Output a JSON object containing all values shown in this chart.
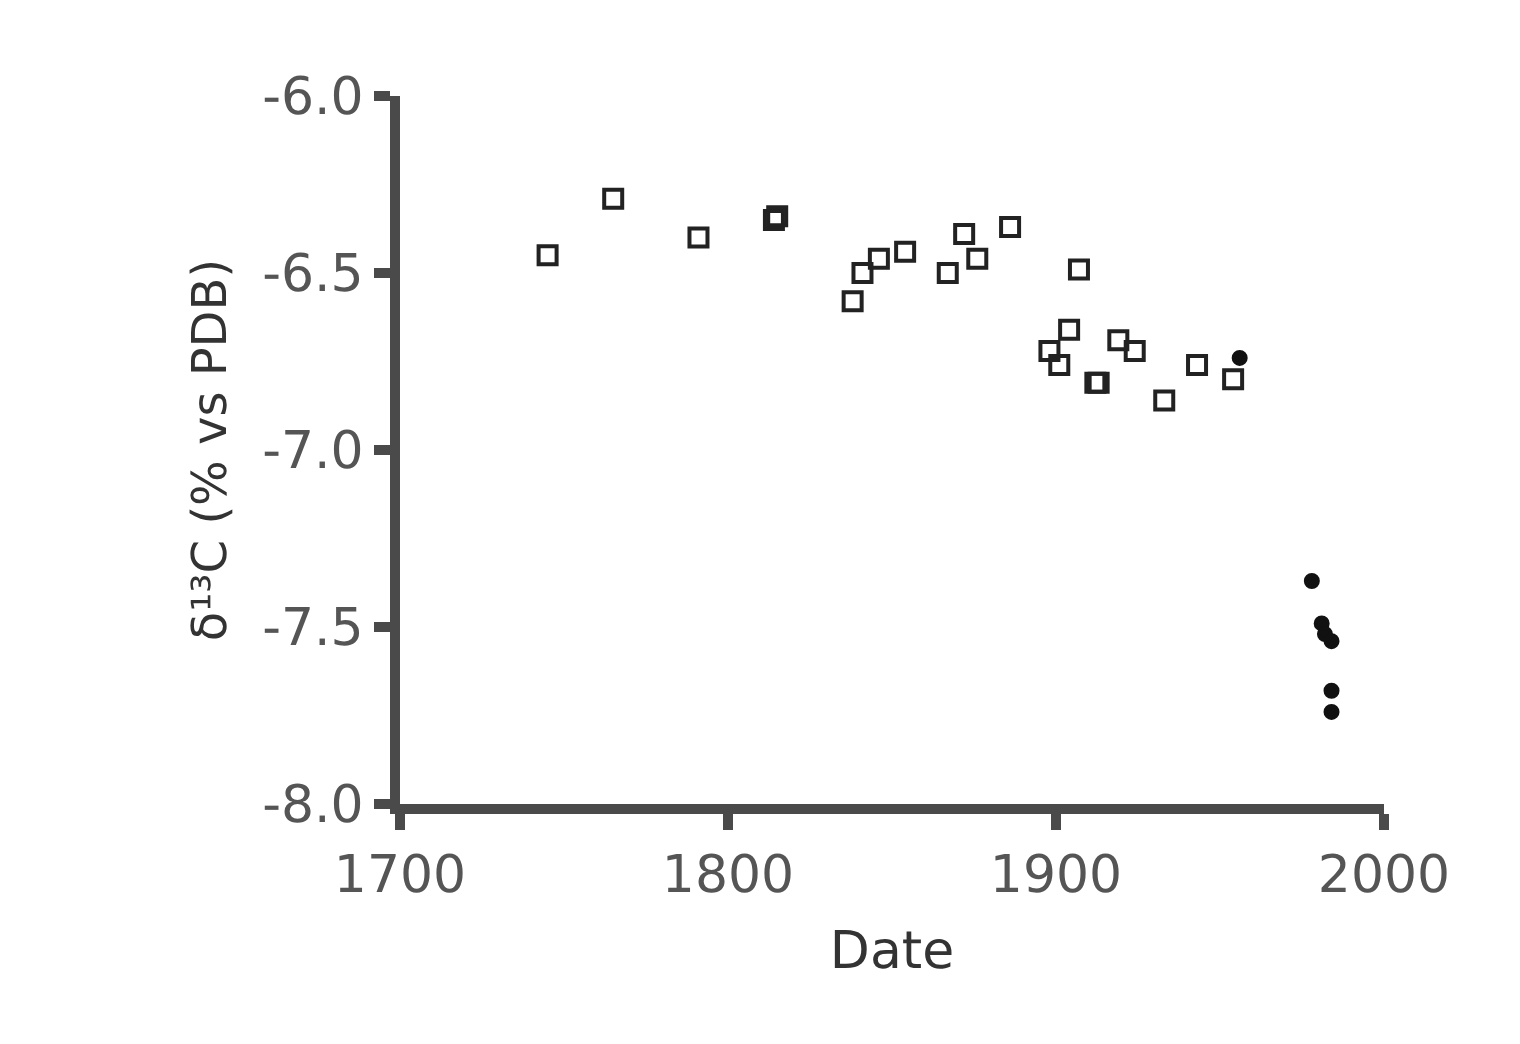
{
  "chart_data": {
    "type": "scatter",
    "xlabel": "Date",
    "ylabel": "δ¹³C (% vs PDB)",
    "xlim": [
      1700,
      2000
    ],
    "xticks": [
      1700,
      1800,
      1900,
      2000
    ],
    "ylim": [
      -8.0,
      -6.0
    ],
    "yticks": [
      {
        "value": -8.0,
        "label": "-8.0"
      },
      {
        "value": -7.5,
        "label": "-7.5"
      },
      {
        "value": -7.0,
        "label": "-7.0"
      },
      {
        "value": -6.5,
        "label": "-6.5"
      },
      {
        "value": -6.0,
        "label": "-6.0"
      }
    ],
    "series": [
      {
        "color": "#222222",
        "marker": "square",
        "x": [
          1745,
          1765,
          1791,
          1814,
          1815,
          1838,
          1841,
          1846,
          1854,
          1867,
          1872,
          1876,
          1886,
          1907,
          1904,
          1898,
          1901,
          1912,
          1913,
          1919,
          1924,
          1933,
          1943,
          1954
        ],
        "values": [
          -6.45,
          -6.29,
          -6.4,
          -6.35,
          -6.34,
          -6.58,
          -6.5,
          -6.46,
          -6.44,
          -6.5,
          -6.39,
          -6.46,
          -6.37,
          -6.49,
          -6.66,
          -6.72,
          -6.76,
          -6.81,
          -6.81,
          -6.69,
          -6.72,
          -6.86,
          -6.76,
          -6.8
        ]
      },
      {
        "color": "#111111",
        "marker": "circle",
        "x": [
          1956,
          1978,
          1981,
          1982,
          1984,
          1984,
          1984
        ],
        "values": [
          -6.74,
          -7.37,
          -7.49,
          -7.52,
          -7.54,
          -7.68,
          -7.74
        ]
      }
    ]
  }
}
